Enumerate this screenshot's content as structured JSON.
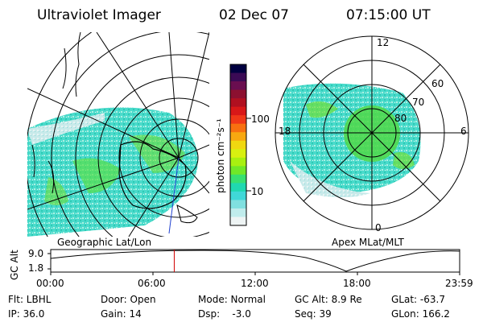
{
  "header": {
    "title": "Ultraviolet Imager",
    "date": "02 Dec 07",
    "time": "07:15:00 UT"
  },
  "colorbar": {
    "unit_label": "photon cm⁻²s⁻¹",
    "ticks": [
      "100",
      "10"
    ],
    "colors": [
      "#000040",
      "#3a0a55",
      "#6a0e50",
      "#8c1030",
      "#b01020",
      "#d81818",
      "#f03818",
      "#f87010",
      "#f8a810",
      "#f0d810",
      "#d8f010",
      "#a8f010",
      "#70e828",
      "#38e070",
      "#20d8b0",
      "#40d8d8",
      "#80e0e0",
      "#c0ecec",
      "#eef4f4"
    ]
  },
  "left_panel": {
    "caption": "Geographic Lat/Lon"
  },
  "right_panel": {
    "caption": "Apex MLat/MLT",
    "mlt_labels": {
      "top": "12",
      "left": "18",
      "right": "6",
      "bottom": "0"
    },
    "lat_labels": [
      "60",
      "70",
      "80"
    ]
  },
  "altitude_plot": {
    "ylabel": "GC Alt",
    "yticks": [
      "9.0",
      "1.8"
    ],
    "xticks": [
      "00:00",
      "06:00",
      "12:00",
      "18:00",
      "23:59"
    ],
    "marker_time": "07:15",
    "marker_color": "#d00000"
  },
  "info": {
    "row1": {
      "flt": "Flt: LBHL",
      "door": "Door: Open",
      "mode": "Mode: Normal",
      "gcalt": "GC Alt: 8.9 Re",
      "glat": "GLat: -63.7"
    },
    "row2": {
      "ip": "IP: 36.0",
      "gain": "Gain: 14",
      "dsp": "Dsp:    -3.0",
      "seq": "Seq: 39",
      "glon": "GLon: 166.2"
    }
  }
}
